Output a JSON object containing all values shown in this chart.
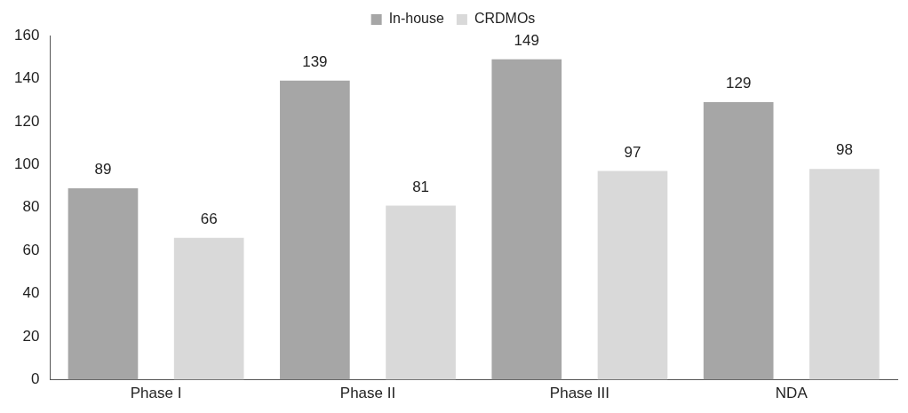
{
  "chart_data": {
    "type": "bar",
    "categories": [
      "Phase I",
      "Phase II",
      "Phase III",
      "NDA"
    ],
    "series": [
      {
        "name": "In-house",
        "color": "#a6a6a6",
        "values": [
          89,
          139,
          149,
          129
        ]
      },
      {
        "name": "CRDMOs",
        "color": "#d9d9d9",
        "values": [
          66,
          81,
          97,
          98
        ]
      }
    ],
    "ylim": [
      0,
      160
    ],
    "yticks": [
      0,
      20,
      40,
      60,
      80,
      100,
      120,
      140,
      160
    ],
    "data_labels": true,
    "legend": "top",
    "grid": false
  }
}
